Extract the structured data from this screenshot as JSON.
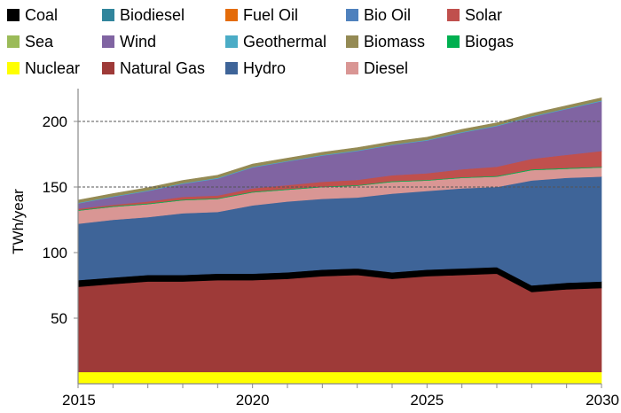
{
  "chart_data": {
    "type": "area",
    "stacked": true,
    "title": "",
    "xlabel": "",
    "ylabel": "TWh/year",
    "xlim": [
      2015,
      2030
    ],
    "ylim": [
      0,
      225
    ],
    "yticks": [
      50,
      100,
      150,
      200
    ],
    "xticks": [
      2015,
      2020,
      2025,
      2030
    ],
    "gridlines_dashed_at": [
      150,
      200
    ],
    "legend_placement": "top",
    "x": [
      2015,
      2016,
      2017,
      2018,
      2019,
      2020,
      2021,
      2022,
      2023,
      2024,
      2025,
      2026,
      2027,
      2028,
      2029,
      2030
    ],
    "series": [
      {
        "name": "Nuclear",
        "color": "#FFFF00",
        "values": [
          9,
          9,
          9,
          9,
          9,
          9,
          9,
          9,
          9,
          9,
          9,
          9,
          9,
          9,
          9,
          9
        ]
      },
      {
        "name": "Natural Gas",
        "color": "#9E3A38",
        "values": [
          65,
          67,
          69,
          69,
          70,
          70,
          71,
          73,
          74,
          71,
          73,
          74,
          75,
          61,
          63,
          64
        ]
      },
      {
        "name": "Coal",
        "color": "#000000",
        "values": [
          5,
          5,
          5,
          5,
          5,
          5,
          5,
          5,
          5,
          5,
          5,
          5,
          5,
          5,
          5,
          5
        ]
      },
      {
        "name": "Hydro",
        "color": "#3E6498",
        "values": [
          43,
          44,
          44,
          47,
          47,
          52,
          54,
          54,
          54,
          60,
          60,
          61,
          61,
          80,
          80,
          80
        ]
      },
      {
        "name": "Diesel",
        "color": "#D99694",
        "values": [
          10,
          10,
          10,
          10,
          10,
          10,
          9,
          9,
          9,
          9,
          8,
          8,
          8,
          8,
          7,
          7
        ]
      },
      {
        "name": "Biodiesel",
        "color": "#31859C",
        "values": [
          0,
          0,
          0,
          0,
          0,
          0,
          0,
          0,
          0,
          0,
          0,
          0,
          0,
          0,
          0,
          0
        ]
      },
      {
        "name": "Fuel Oil",
        "color": "#E46C0A",
        "values": [
          0,
          0,
          0,
          0,
          0,
          0,
          0,
          0,
          0,
          0,
          0,
          0,
          0,
          0,
          0,
          0
        ]
      },
      {
        "name": "Bio Oil",
        "color": "#4F81BD",
        "values": [
          0,
          0,
          0,
          0,
          0,
          0,
          0,
          0,
          0,
          0,
          0,
          0,
          0,
          0,
          0,
          0
        ]
      },
      {
        "name": "Sea",
        "color": "#9BBB59",
        "values": [
          0,
          0,
          0,
          0,
          0,
          0,
          0,
          0,
          0,
          0,
          0,
          0,
          0,
          0,
          0,
          0
        ]
      },
      {
        "name": "Biogas",
        "color": "#00B050",
        "values": [
          0.5,
          0.5,
          0.5,
          0.5,
          0.5,
          0.5,
          0.5,
          0.5,
          0.5,
          0.5,
          0.5,
          0.5,
          0.5,
          0.5,
          0.5,
          0.5
        ]
      },
      {
        "name": "Solar",
        "color": "#C0504D",
        "values": [
          1,
          1,
          1.5,
          2,
          2,
          2.5,
          3,
          3.5,
          4,
          4.5,
          5,
          6,
          7,
          8,
          10,
          12
        ]
      },
      {
        "name": "Wind",
        "color": "#8064A2",
        "values": [
          4,
          6,
          8,
          10,
          13,
          16,
          18,
          20,
          22,
          23,
          25,
          28,
          31,
          32,
          35,
          38
        ]
      },
      {
        "name": "Geothermal",
        "color": "#4BACC6",
        "values": [
          0.5,
          0.5,
          0.5,
          0.5,
          0.5,
          0.5,
          0.5,
          0.5,
          0.5,
          0.5,
          0.5,
          0.5,
          0.5,
          0.5,
          0.5,
          0.5
        ]
      },
      {
        "name": "Biomass",
        "color": "#948A54",
        "values": [
          2,
          2,
          2,
          2,
          2,
          2,
          2,
          2,
          2,
          2,
          2,
          2,
          2,
          2,
          2,
          2
        ]
      }
    ],
    "legend": [
      {
        "name": "Coal",
        "color": "#000000"
      },
      {
        "name": "Biodiesel",
        "color": "#31859C"
      },
      {
        "name": "Fuel Oil",
        "color": "#E46C0A"
      },
      {
        "name": "Bio Oil",
        "color": "#4F81BD"
      },
      {
        "name": "Solar",
        "color": "#C0504D"
      },
      {
        "name": "Sea",
        "color": "#9BBB59"
      },
      {
        "name": "Wind",
        "color": "#8064A2"
      },
      {
        "name": "Geothermal",
        "color": "#4BACC6"
      },
      {
        "name": "Biomass",
        "color": "#948A54"
      },
      {
        "name": "Biogas",
        "color": "#00B050"
      },
      {
        "name": "Nuclear",
        "color": "#FFFF00"
      },
      {
        "name": "Natural Gas",
        "color": "#9E3A38"
      },
      {
        "name": "Hydro",
        "color": "#3E6498"
      },
      {
        "name": "Diesel",
        "color": "#D99694"
      }
    ]
  }
}
